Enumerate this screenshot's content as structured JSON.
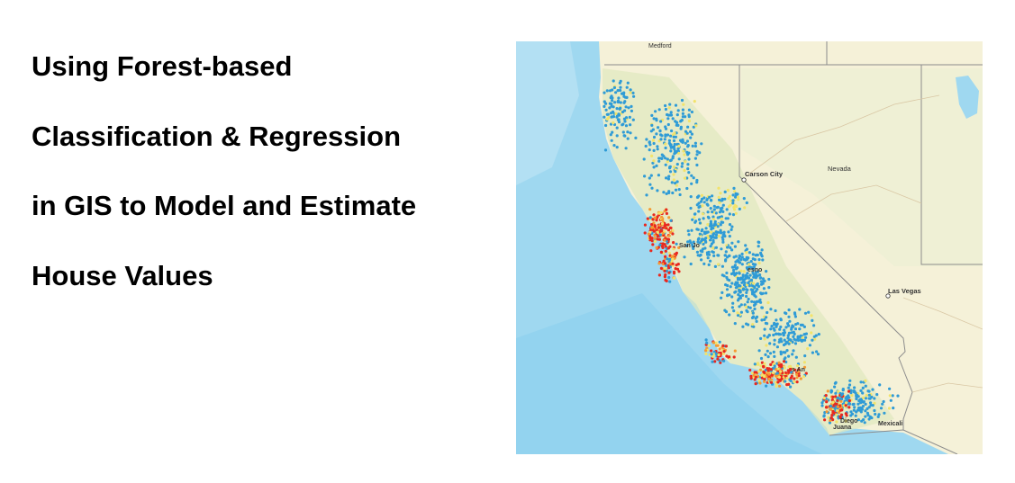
{
  "slide": {
    "title_lines": [
      "Using Forest-based",
      "Classification & Regression",
      "in GIS to Model and Estimate",
      "House Values"
    ]
  },
  "map": {
    "labels": {
      "medford": "Medford",
      "carson_city": "Carson City",
      "nevada": "Nevada",
      "las_vegas": "Las Vegas",
      "san_jose": "San Jo",
      "fresno": "esno",
      "los_angeles": "s An",
      "san_diego": "Diego",
      "tijuana": "Juana",
      "mexicali": "Mexicali"
    },
    "colors": {
      "ocean": "#9fd8f0",
      "ocean_deep": "#8dd0ee",
      "land": "#f5f1d8",
      "land_green": "#dfe8bf",
      "border": "#8c8c8c",
      "low_value": "#2f9bd6",
      "mid_value": "#f2e36b",
      "high_value": "#e8281f",
      "upper_mid_value": "#f59a32"
    }
  }
}
